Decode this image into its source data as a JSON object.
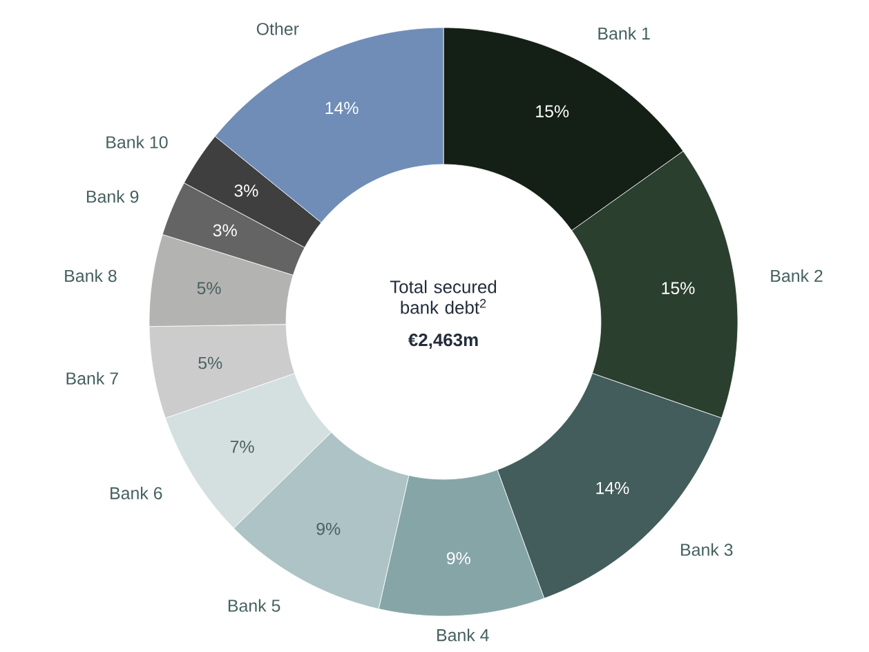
{
  "chart_data": {
    "type": "donut",
    "title": "Total secured bank debt$^{2}$",
    "subtitle": "€2,463m",
    "categories": [
      "Bank 1",
      "Bank 2",
      "Bank 3",
      "Bank 4",
      "Bank 5",
      "Bank 6",
      "Bank 7",
      "Bank 8",
      "Bank 9",
      "Bank 10",
      "Other"
    ],
    "values": [
      15,
      15,
      14,
      9,
      9,
      7,
      5,
      5,
      3,
      3,
      14
    ],
    "value_labels": [
      "15%",
      "15%",
      "14%",
      "9%",
      "9%",
      "7%",
      "5%",
      "5%",
      "3%",
      "3%",
      "14%"
    ],
    "colors": [
      "#141f16",
      "#2a3f2e",
      "#435c5c",
      "#86a5a7",
      "#adc3c5",
      "#d4e0e0",
      "#cccccc",
      "#b3b3b1",
      "#646464",
      "#3f3f3f",
      "#6f8db7"
    ]
  }
}
